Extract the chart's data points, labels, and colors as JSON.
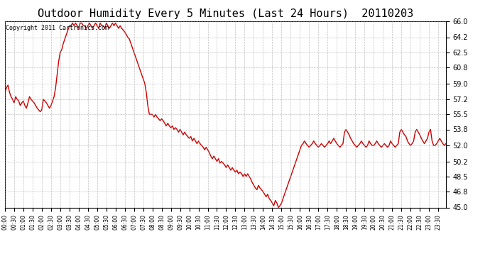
{
  "title": "Outdoor Humidity Every 5 Minutes (Last 24 Hours)  20110203",
  "copyright_text": "Copyright 2011 Cartronics.com",
  "line_color": "#cc0000",
  "bg_color": "#ffffff",
  "plot_bg_color": "#ffffff",
  "grid_color": "#999999",
  "ylim": [
    45.0,
    66.0
  ],
  "yticks": [
    45.0,
    46.8,
    48.5,
    50.2,
    52.0,
    53.8,
    55.5,
    57.2,
    59.0,
    60.8,
    62.5,
    64.2,
    66.0
  ],
  "total_points": 288,
  "x_tick_every": 6,
  "title_fontsize": 11,
  "tick_fontsize": 7,
  "xtick_fontsize": 5.5,
  "humidity_data": [
    58.0,
    58.5,
    58.8,
    58.0,
    57.5,
    57.2,
    56.8,
    57.5,
    57.2,
    57.0,
    56.5,
    56.8,
    57.0,
    56.5,
    56.2,
    56.8,
    57.5,
    57.2,
    57.0,
    56.8,
    56.5,
    56.2,
    56.0,
    55.8,
    56.0,
    57.2,
    57.0,
    56.8,
    56.5,
    56.2,
    56.5,
    57.0,
    57.5,
    58.5,
    60.0,
    61.5,
    62.5,
    62.8,
    63.5,
    64.0,
    64.5,
    65.0,
    65.5,
    65.5,
    65.8,
    65.5,
    65.8,
    65.5,
    65.2,
    65.8,
    65.8,
    65.5,
    65.5,
    65.2,
    65.5,
    65.8,
    65.5,
    65.2,
    65.5,
    65.8,
    65.5,
    65.2,
    65.8,
    65.5,
    65.5,
    65.2,
    65.8,
    65.5,
    65.2,
    65.5,
    65.8,
    65.5,
    65.8,
    65.5,
    65.2,
    65.5,
    65.2,
    65.0,
    64.8,
    64.5,
    64.2,
    64.0,
    63.5,
    63.0,
    62.5,
    62.0,
    61.5,
    61.0,
    60.5,
    60.0,
    59.5,
    59.0,
    58.0,
    56.5,
    55.5,
    55.5,
    55.5,
    55.2,
    55.5,
    55.2,
    55.0,
    54.8,
    55.0,
    54.8,
    54.5,
    54.2,
    54.5,
    54.2,
    54.0,
    54.2,
    53.8,
    54.0,
    53.8,
    53.5,
    53.8,
    53.5,
    53.2,
    53.5,
    53.2,
    53.0,
    52.8,
    53.0,
    52.5,
    52.8,
    52.5,
    52.2,
    52.5,
    52.2,
    52.0,
    51.8,
    51.5,
    51.8,
    51.5,
    51.2,
    50.8,
    50.5,
    50.8,
    50.5,
    50.2,
    50.5,
    50.0,
    50.2,
    50.0,
    49.8,
    49.5,
    49.8,
    49.5,
    49.2,
    49.5,
    49.2,
    49.0,
    49.2,
    48.8,
    49.0,
    48.8,
    48.5,
    48.8,
    48.5,
    48.8,
    48.5,
    48.2,
    47.8,
    47.5,
    47.2,
    47.0,
    47.5,
    47.2,
    47.0,
    46.8,
    46.5,
    46.2,
    46.5,
    46.0,
    45.8,
    45.5,
    45.2,
    45.8,
    45.5,
    45.0,
    45.2,
    45.5,
    46.0,
    46.5,
    47.0,
    47.5,
    48.0,
    48.5,
    49.0,
    49.5,
    50.0,
    50.5,
    51.0,
    51.5,
    52.0,
    52.2,
    52.5,
    52.2,
    52.0,
    51.8,
    52.0,
    52.2,
    52.5,
    52.2,
    52.0,
    51.8,
    52.0,
    52.2,
    52.0,
    51.8,
    52.0,
    52.2,
    52.5,
    52.2,
    52.5,
    52.8,
    52.5,
    52.2,
    52.0,
    51.8,
    52.0,
    52.2,
    53.5,
    53.8,
    53.5,
    53.2,
    52.8,
    52.5,
    52.2,
    52.0,
    51.8,
    52.0,
    52.2,
    52.5,
    52.2,
    52.0,
    51.8,
    52.0,
    52.5,
    52.2,
    52.0,
    52.0,
    52.2,
    52.5,
    52.2,
    52.0,
    51.8,
    52.0,
    52.2,
    52.0,
    51.8,
    52.0,
    52.5,
    52.2,
    52.0,
    51.8,
    52.0,
    52.2,
    53.5,
    53.8,
    53.5,
    53.2,
    53.0,
    52.5,
    52.2,
    52.0,
    52.2,
    52.5,
    53.5,
    53.8,
    53.5,
    53.2,
    52.8,
    52.5,
    52.2,
    52.5,
    52.8,
    53.5,
    53.8,
    52.5,
    52.0,
    52.0,
    52.2,
    52.5,
    52.8,
    52.5,
    52.2,
    52.0,
    52.2
  ]
}
